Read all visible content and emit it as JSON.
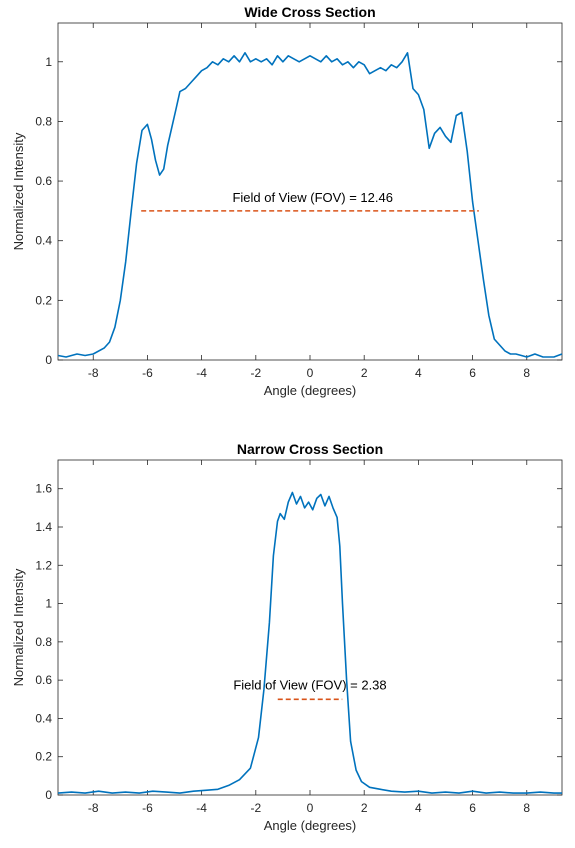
{
  "chart_data": [
    {
      "type": "line",
      "title": "Wide Cross Section",
      "xlabel": "Angle (degrees)",
      "ylabel": "Normalized Intensity",
      "xlim": [
        -9.3,
        9.3
      ],
      "ylim": [
        0,
        1.13
      ],
      "xticks": [
        -8,
        -6,
        -4,
        -2,
        0,
        2,
        4,
        6,
        8
      ],
      "yticks": [
        0,
        0.2,
        0.4,
        0.6,
        0.8,
        1
      ],
      "grid": false,
      "annotation": {
        "text": "Field of View (FOV) = 12.46",
        "x": 0.1,
        "y": 0.53
      },
      "fov_line": {
        "x": [
          -6.23,
          6.23
        ],
        "y": 0.5,
        "color": "#D95319",
        "style": "dashed"
      },
      "series": [
        {
          "color": "#0072BD",
          "x": [
            -9.3,
            -9.0,
            -8.6,
            -8.3,
            -8.0,
            -7.6,
            -7.4,
            -7.2,
            -7.0,
            -6.8,
            -6.6,
            -6.4,
            -6.2,
            -6.0,
            -5.85,
            -5.7,
            -5.55,
            -5.4,
            -5.25,
            -5.1,
            -4.95,
            -4.8,
            -4.6,
            -4.4,
            -4.2,
            -4.0,
            -3.8,
            -3.6,
            -3.4,
            -3.2,
            -3.0,
            -2.8,
            -2.6,
            -2.4,
            -2.2,
            -2.0,
            -1.8,
            -1.6,
            -1.4,
            -1.2,
            -1.0,
            -0.8,
            -0.6,
            -0.4,
            -0.2,
            0.0,
            0.2,
            0.4,
            0.6,
            0.8,
            1.0,
            1.2,
            1.4,
            1.6,
            1.8,
            2.0,
            2.2,
            2.4,
            2.6,
            2.8,
            3.0,
            3.2,
            3.4,
            3.6,
            3.8,
            4.0,
            4.2,
            4.4,
            4.6,
            4.8,
            5.0,
            5.2,
            5.4,
            5.6,
            5.8,
            6.0,
            6.2,
            6.4,
            6.6,
            6.8,
            7.0,
            7.2,
            7.4,
            7.6,
            7.8,
            8.0,
            8.3,
            8.6,
            9.0,
            9.3
          ],
          "values": [
            0.015,
            0.01,
            0.02,
            0.015,
            0.02,
            0.04,
            0.06,
            0.11,
            0.2,
            0.33,
            0.5,
            0.66,
            0.77,
            0.79,
            0.74,
            0.67,
            0.62,
            0.64,
            0.72,
            0.78,
            0.84,
            0.9,
            0.91,
            0.93,
            0.95,
            0.97,
            0.98,
            1.0,
            0.99,
            1.01,
            1.0,
            1.02,
            1.0,
            1.03,
            1.0,
            1.01,
            1.0,
            1.01,
            0.99,
            1.02,
            1.0,
            1.02,
            1.01,
            1.0,
            1.01,
            1.02,
            1.01,
            1.0,
            1.02,
            1.0,
            1.01,
            0.99,
            1.0,
            0.98,
            1.0,
            0.99,
            0.96,
            0.97,
            0.98,
            0.97,
            0.99,
            0.98,
            1.0,
            1.03,
            0.91,
            0.89,
            0.84,
            0.71,
            0.76,
            0.78,
            0.75,
            0.73,
            0.82,
            0.83,
            0.7,
            0.53,
            0.4,
            0.27,
            0.15,
            0.07,
            0.05,
            0.03,
            0.02,
            0.02,
            0.015,
            0.01,
            0.02,
            0.01,
            0.01,
            0.02
          ]
        }
      ]
    },
    {
      "type": "line",
      "title": "Narrow Cross Section",
      "xlabel": "Angle (degrees)",
      "ylabel": "Normalized Intensity",
      "xlim": [
        -9.3,
        9.3
      ],
      "ylim": [
        0,
        1.75
      ],
      "xticks": [
        -8,
        -6,
        -4,
        -2,
        0,
        2,
        4,
        6,
        8
      ],
      "yticks": [
        0,
        0.2,
        0.4,
        0.6,
        0.8,
        1,
        1.2,
        1.4,
        1.6
      ],
      "grid": false,
      "annotation": {
        "text": "Field of View (FOV) = 2.38",
        "x": 0.0,
        "y": 0.55
      },
      "fov_line": {
        "x": [
          -1.19,
          1.19
        ],
        "y": 0.5,
        "color": "#D95319",
        "style": "dashed"
      },
      "series": [
        {
          "color": "#0072BD",
          "x": [
            -9.3,
            -8.8,
            -8.3,
            -7.8,
            -7.3,
            -6.8,
            -6.3,
            -5.8,
            -5.3,
            -4.8,
            -4.3,
            -3.8,
            -3.4,
            -3.0,
            -2.6,
            -2.2,
            -1.9,
            -1.7,
            -1.5,
            -1.35,
            -1.2,
            -1.1,
            -0.95,
            -0.8,
            -0.65,
            -0.5,
            -0.35,
            -0.2,
            -0.05,
            0.1,
            0.25,
            0.4,
            0.55,
            0.7,
            0.85,
            1.0,
            1.1,
            1.2,
            1.35,
            1.5,
            1.7,
            1.9,
            2.2,
            2.6,
            3.0,
            3.5,
            4.0,
            4.5,
            5.0,
            5.5,
            6.0,
            6.5,
            7.0,
            7.5,
            8.0,
            8.5,
            9.0,
            9.3
          ],
          "values": [
            0.01,
            0.015,
            0.01,
            0.02,
            0.01,
            0.015,
            0.01,
            0.02,
            0.015,
            0.01,
            0.02,
            0.025,
            0.03,
            0.05,
            0.08,
            0.14,
            0.3,
            0.55,
            0.9,
            1.25,
            1.43,
            1.47,
            1.44,
            1.53,
            1.58,
            1.52,
            1.56,
            1.5,
            1.53,
            1.49,
            1.55,
            1.57,
            1.51,
            1.56,
            1.5,
            1.45,
            1.3,
            1.0,
            0.6,
            0.28,
            0.13,
            0.07,
            0.04,
            0.03,
            0.02,
            0.015,
            0.02,
            0.01,
            0.015,
            0.01,
            0.02,
            0.01,
            0.015,
            0.01,
            0.01,
            0.015,
            0.01,
            0.01
          ]
        }
      ]
    }
  ]
}
